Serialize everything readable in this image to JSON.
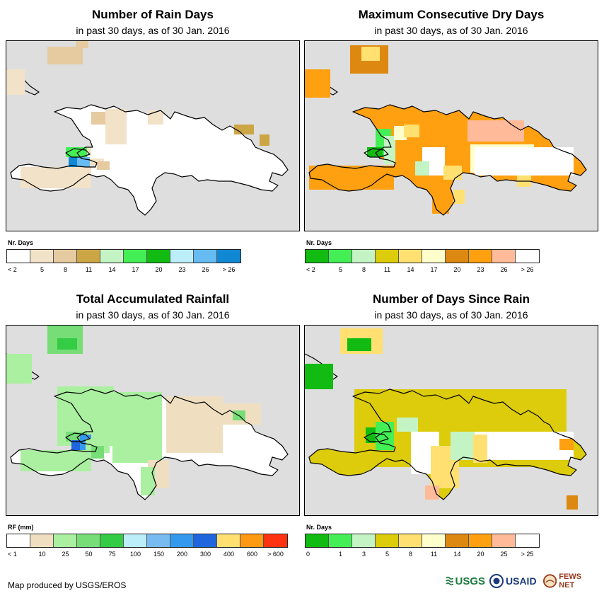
{
  "panels": [
    {
      "title": "Number of Rain Days",
      "subtitle": "in past 30 days, as of 30 Jan. 2016",
      "legend": {
        "title": "Nr. Days",
        "colors": [
          "#ffffff",
          "#f2e2c8",
          "#e6cba0",
          "#cca545",
          "#c4f4c4",
          "#44ee55",
          "#11bb11",
          "#bbeef8",
          "#66bbf2",
          "#1188d4"
        ],
        "labels": [
          "< 2",
          "5",
          "8",
          "11",
          "14",
          "17",
          "20",
          "23",
          "26",
          "> 26"
        ]
      }
    },
    {
      "title": "Maximum Consecutive Dry Days",
      "subtitle": "in past 30 days, as of 30 Jan. 2016",
      "legend": {
        "title": "Nr. Days",
        "colors": [
          "#11bb11",
          "#44ee55",
          "#c4f4c4",
          "#dccc0c",
          "#ffe070",
          "#ffffcc",
          "#dd8811",
          "#ffa011",
          "#ffbb99",
          "#ffffff"
        ],
        "labels": [
          "< 2",
          "5",
          "8",
          "11",
          "14",
          "17",
          "20",
          "23",
          "26",
          "> 26"
        ]
      }
    },
    {
      "title": "Total Accumulated Rainfall",
      "subtitle": "in past 30 days, as of 30 Jan. 2016",
      "legend": {
        "title": "RF (mm)",
        "colors": [
          "#ffffff",
          "#efdfc0",
          "#aaf0a0",
          "#77dd77",
          "#33cc44",
          "#bbeef8",
          "#77bbf0",
          "#3399ee",
          "#1f66dd",
          "#ffe070",
          "#ff9911",
          "#ff3311"
        ],
        "labels": [
          "< 1",
          "10",
          "25",
          "50",
          "75",
          "100",
          "150",
          "200",
          "300",
          "400",
          "600",
          "> 600"
        ]
      }
    },
    {
      "title": "Number of Days Since Rain",
      "subtitle": "in past 30 days, as of 30 Jan. 2016",
      "legend": {
        "title": "Nr. Days",
        "colors": [
          "#11bb11",
          "#44ee55",
          "#c4f4c4",
          "#dccc0c",
          "#ffe070",
          "#ffffcc",
          "#dd8811",
          "#ffa011",
          "#ffbb99",
          "#ffffff"
        ],
        "labels": [
          "0",
          "1",
          "3",
          "5",
          "8",
          "11",
          "14",
          "20",
          "25",
          "> 25"
        ]
      }
    }
  ],
  "credit": "Map produced by USGS/EROS",
  "logos": {
    "usgs": "USGS",
    "usaid": "USAID",
    "fewsnet": "FEWS NET"
  }
}
